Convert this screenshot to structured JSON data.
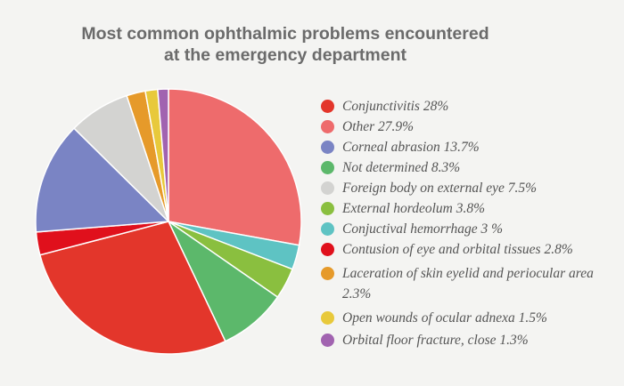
{
  "chart_data": {
    "type": "pie",
    "title_lines": [
      "Most common ophthalmic problems encountered",
      "at the emergency department"
    ],
    "slices": [
      {
        "label": "Conjunctivitis 28%",
        "value": 28.0,
        "color": "#e3362b"
      },
      {
        "label": "Other 27.9%",
        "value": 27.9,
        "color": "#ee6b6c"
      },
      {
        "label": "Corneal abrasion 13.7%",
        "value": 13.7,
        "color": "#7a84c4"
      },
      {
        "label": "Not determined 8.3%",
        "value": 8.3,
        "color": "#5cb86b"
      },
      {
        "label": "Foreign body on external eye 7.5%",
        "value": 7.5,
        "color": "#d3d3d1"
      },
      {
        "label": "External hordeolum 3.8%",
        "value": 3.8,
        "color": "#8abf3f"
      },
      {
        "label": "Conjuctival hemorrhage 3 %",
        "value": 3.0,
        "color": "#5ec3c3"
      },
      {
        "label": "Contusion of eye and orbital tissues 2.8%",
        "value": 2.8,
        "color": "#e0101c"
      },
      {
        "label": "Laceration of skin eyelid and periocular area 2.3%",
        "value": 2.3,
        "color": "#e69a2a"
      },
      {
        "label": "Open wounds of ocular adnexa 1.5%",
        "value": 1.5,
        "color": "#e8c93b"
      },
      {
        "label": "Orbital floor fracture, close 1.3%",
        "value": 1.3,
        "color": "#a163b0"
      }
    ],
    "draw_order": [
      "Other 27.9%",
      "Conjuctival hemorrhage 3 %",
      "External hordeolum 3.8%",
      "Not determined 8.3%",
      "Conjunctivitis 28%",
      "Contusion of eye and orbital tissues 2.8%",
      "Corneal abrasion 13.7%",
      "Foreign body on external eye 7.5%",
      "Laceration of skin eyelid and periocular area 2.3%",
      "Open wounds of ocular adnexa 1.5%",
      "Orbital floor fracture, close 1.3%"
    ],
    "start": "12 o'clock",
    "direction": "clockwise",
    "legend_position": "right"
  }
}
